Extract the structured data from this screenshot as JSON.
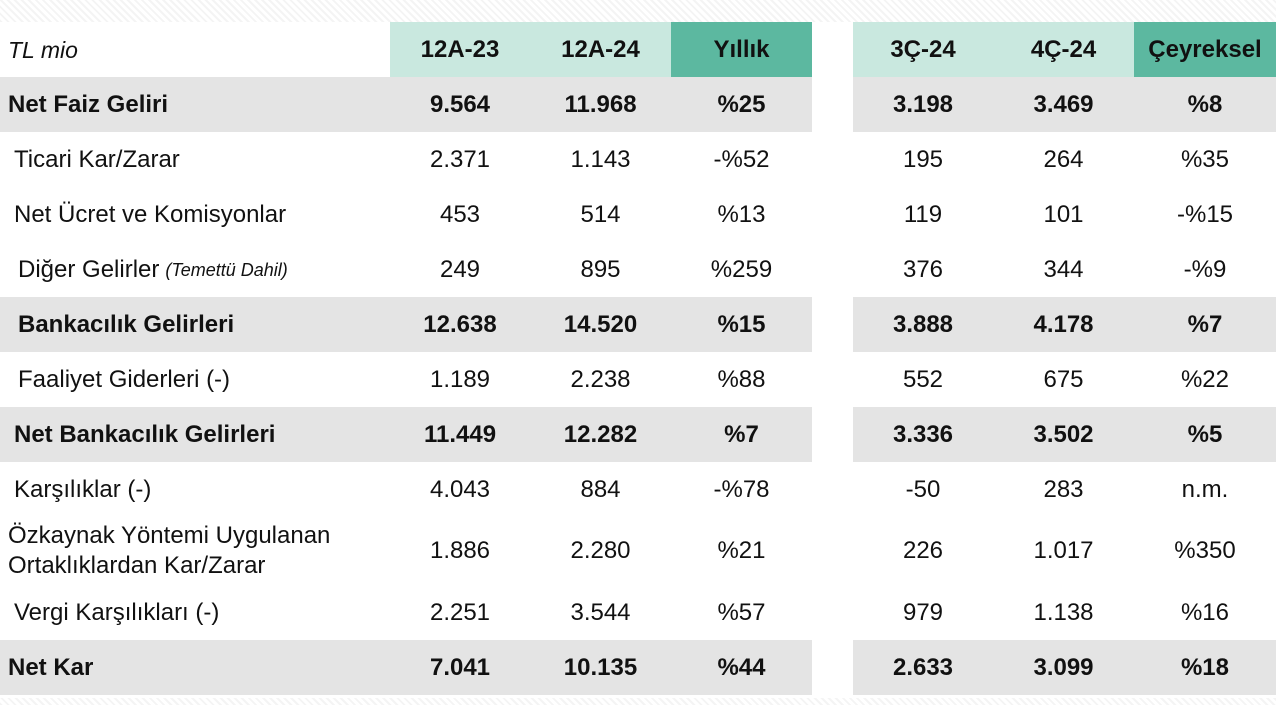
{
  "unit_label": "TL mio",
  "columns": [
    "12A-23",
    "12A-24",
    "Yıllık",
    "3Ç-24",
    "4Ç-24",
    "Çeyreksel"
  ],
  "rows": [
    {
      "label": "Net Faiz Geliri",
      "note": "",
      "values": [
        "9.564",
        "11.968",
        "%25",
        "3.198",
        "3.469",
        "%8"
      ]
    },
    {
      "label": "Ticari Kar/Zarar",
      "note": "",
      "values": [
        "2.371",
        "1.143",
        "-%52",
        "195",
        "264",
        "%35"
      ]
    },
    {
      "label": "Net Ücret ve Komisyonlar",
      "note": "",
      "values": [
        "453",
        "514",
        "%13",
        "119",
        "101",
        "-%15"
      ]
    },
    {
      "label": "Diğer Gelirler",
      "note": "(Temettü Dahil)",
      "values": [
        "249",
        "895",
        "%259",
        "376",
        "344",
        "-%9"
      ]
    },
    {
      "label": "Bankacılık Gelirleri",
      "note": "",
      "values": [
        "12.638",
        "14.520",
        "%15",
        "3.888",
        "4.178",
        "%7"
      ]
    },
    {
      "label": "Faaliyet Giderleri (-)",
      "note": "",
      "values": [
        "1.189",
        "2.238",
        "%88",
        "552",
        "675",
        "%22"
      ]
    },
    {
      "label": "Net Bankacılık Gelirleri",
      "note": "",
      "values": [
        "11.449",
        "12.282",
        "%7",
        "3.336",
        "3.502",
        "%5"
      ]
    },
    {
      "label": "Karşılıklar (-)",
      "note": "",
      "values": [
        "4.043",
        "884",
        "-%78",
        "-50",
        "283",
        "n.m."
      ]
    },
    {
      "label": "Özkaynak Yöntemi Uygulanan Ortaklıklardan Kar/Zarar",
      "note": "",
      "values": [
        "1.886",
        "2.280",
        "%21",
        "226",
        "1.017",
        "%350"
      ]
    },
    {
      "label": "Vergi Karşılıkları (-)",
      "note": "",
      "values": [
        "2.251",
        "3.544",
        "%57",
        "979",
        "1.138",
        "%16"
      ]
    },
    {
      "label": "Net Kar",
      "note": "",
      "values": [
        "7.041",
        "10.135",
        "%44",
        "2.633",
        "3.099",
        "%18"
      ]
    }
  ]
}
